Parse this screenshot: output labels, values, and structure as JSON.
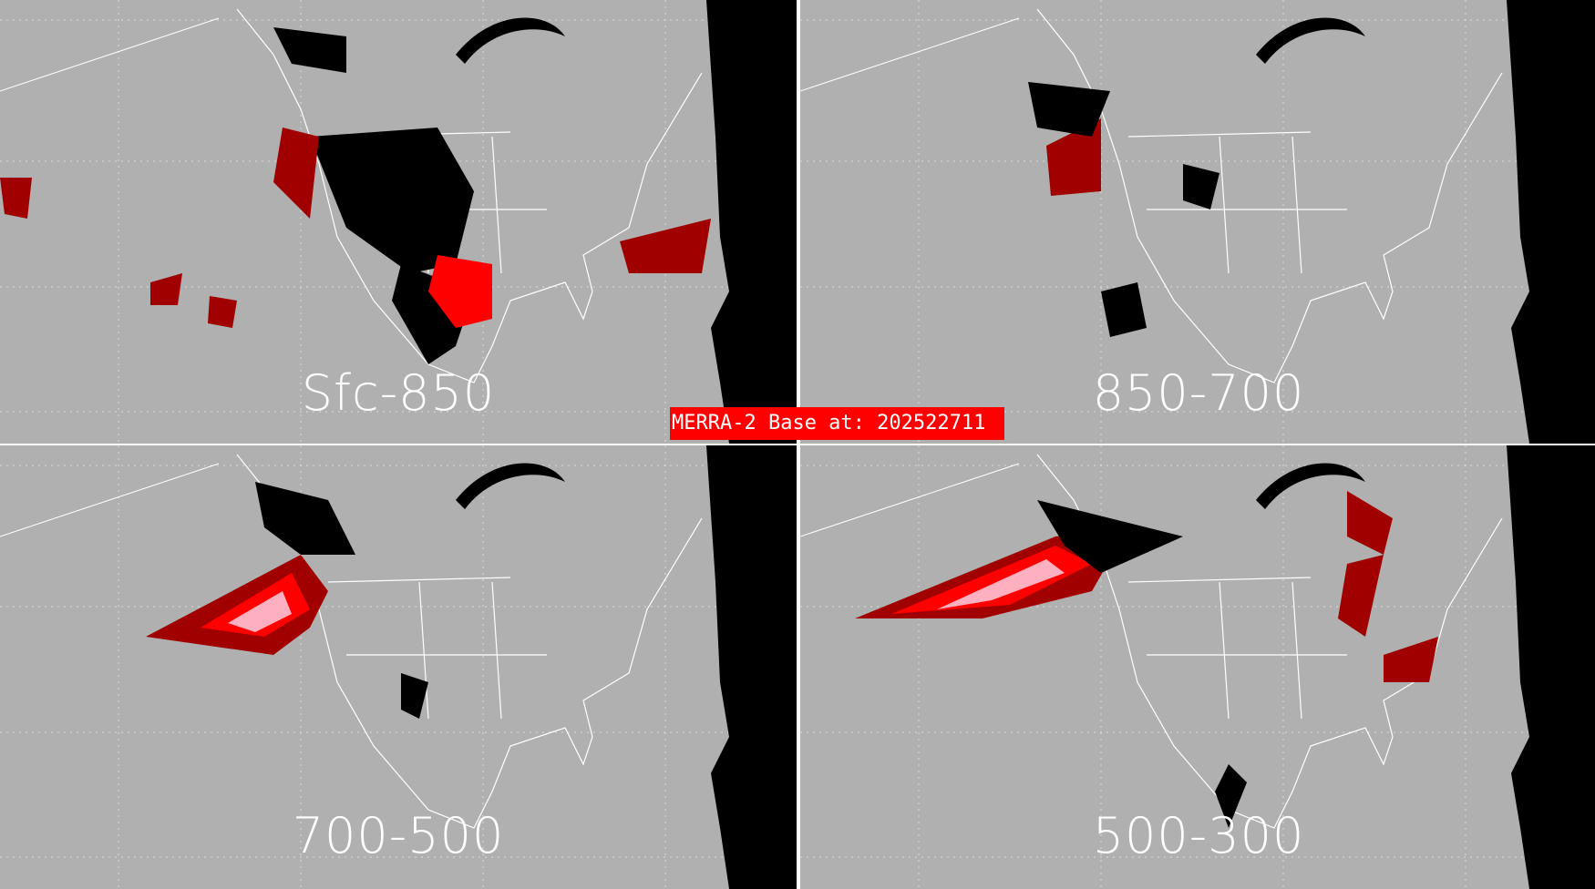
{
  "banner": "MERRA-2 Base at: 202522711",
  "panels": [
    {
      "label": "Sfc-850"
    },
    {
      "label": "850-700"
    },
    {
      "label": "700-500"
    },
    {
      "label": "500-300"
    }
  ],
  "colors": {
    "background": "#b0b0b0",
    "outline": "#ffffff",
    "black": "#000000",
    "red": "#ff0000",
    "darkred": "#a00000",
    "pink": "#ffb0c0"
  }
}
